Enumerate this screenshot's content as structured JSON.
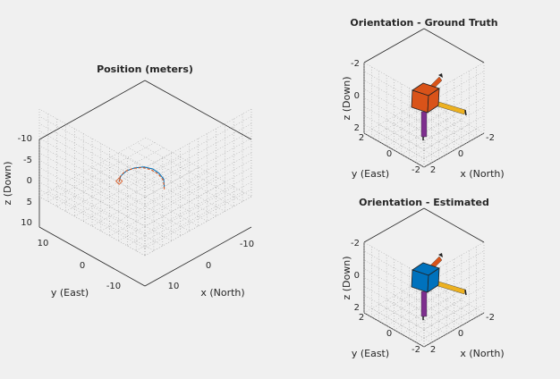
{
  "window": {
    "background": "#f0f0f0"
  },
  "chart_data": [
    {
      "id": "position",
      "type": "line3d",
      "title": "Position (meters)",
      "xlabel": "x (North)",
      "ylabel": "y (East)",
      "zlabel": "z (Down)",
      "xlim": [
        -15,
        15
      ],
      "ylim": [
        -15,
        15
      ],
      "zlim": [
        -10,
        10
      ],
      "xticks": [
        "10",
        "0",
        "-10"
      ],
      "yticks": [
        "10",
        "0",
        "-10"
      ],
      "zticks": [
        "-10",
        "-5",
        "0",
        "5",
        "10"
      ],
      "z_reversed": true,
      "grid": "minor dotted",
      "series": [
        {
          "style": "solid",
          "color": "#0072bd",
          "x": [
            -3,
            -3.5,
            -3.2,
            -2.5,
            -1.2,
            0.5,
            2.0,
            3.2,
            3.8
          ],
          "y": [
            -2.5,
            -1.8,
            -0.8,
            0.3,
            1.5,
            2.5,
            3.2,
            3.6,
            3.5
          ],
          "z": [
            1.2,
            -0.2,
            -1.2,
            -2.0,
            -2.5,
            -2.6,
            -2.3,
            -1.5,
            -0.6
          ]
        },
        {
          "style": "dashed",
          "color": "#d95319",
          "x": [
            -3.2,
            -3.6,
            -3.1,
            -2.3,
            -1.0,
            0.8,
            2.3,
            3.4,
            3.9
          ],
          "y": [
            -2.3,
            -1.6,
            -0.6,
            0.5,
            1.7,
            2.7,
            3.4,
            3.7,
            3.4
          ],
          "z": [
            1.8,
            0.2,
            -1.0,
            -1.8,
            -2.4,
            -2.5,
            -2.2,
            -1.3,
            -0.4
          ]
        }
      ]
    },
    {
      "id": "orientation-truth",
      "type": "pose3d",
      "title": "Orientation - Ground Truth",
      "xlabel": "x (North)",
      "ylabel": "y (East)",
      "zlabel": "z (Down)",
      "xticks": [
        "2",
        "0",
        "-2"
      ],
      "yticks": [
        "2",
        "0",
        "-2"
      ],
      "zticks": [
        "-2",
        "0",
        "2"
      ],
      "cube_color": "#d95319",
      "arrow_colors": {
        "x": "#edb120",
        "y": "#d95319",
        "z": "#7e2f8e"
      }
    },
    {
      "id": "orientation-estimated",
      "type": "pose3d",
      "title": "Orientation - Estimated",
      "xlabel": "x (North)",
      "ylabel": "y (East)",
      "zlabel": "z (Down)",
      "xticks": [
        "2",
        "0",
        "-2"
      ],
      "yticks": [
        "2",
        "0",
        "-2"
      ],
      "zticks": [
        "-2",
        "0",
        "2"
      ],
      "cube_color": "#0072bd",
      "arrow_colors": {
        "x": "#edb120",
        "y": "#d95319",
        "z": "#7e2f8e"
      }
    }
  ]
}
